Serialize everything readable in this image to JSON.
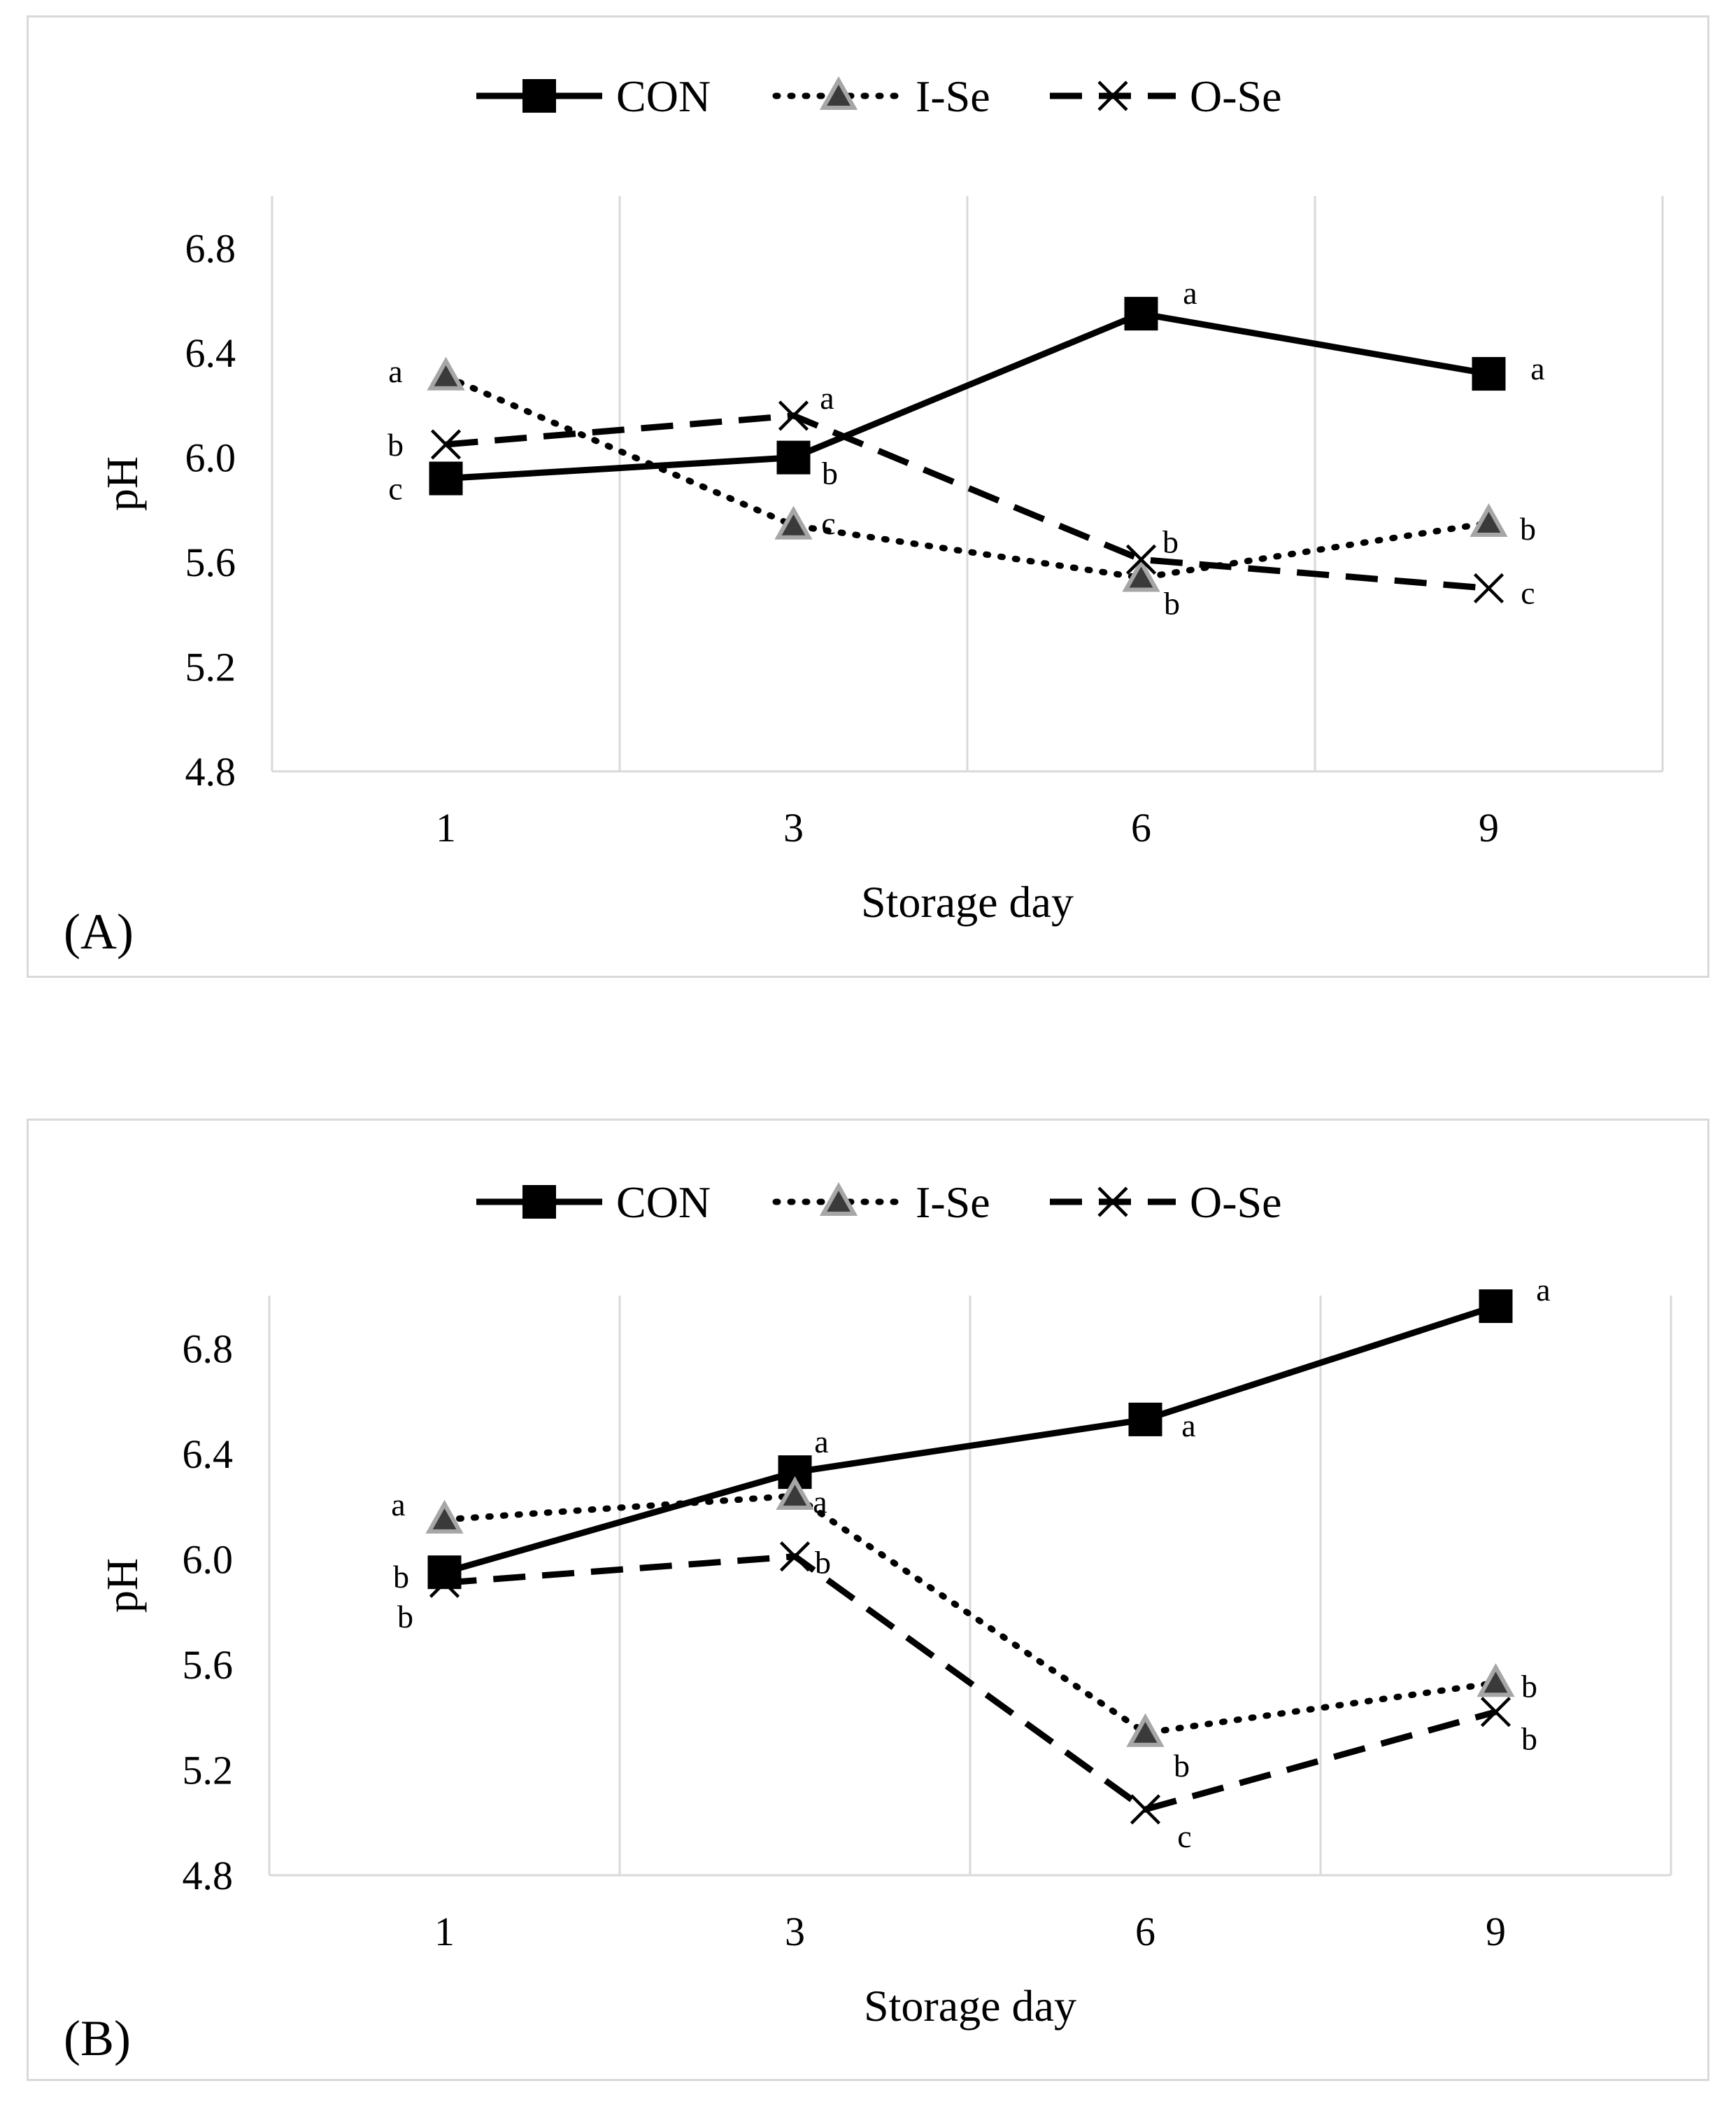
{
  "colors": {
    "line": "#000000",
    "grid": "#d9d9d9",
    "triangle_fill": "#3a3a3a",
    "triangle_edge": "#a6a6a6"
  },
  "chart_data": [
    {
      "type": "line",
      "panel_label": "(A)",
      "title": "",
      "xlabel": "Storage day",
      "ylabel": "pH",
      "categories": [
        "1",
        "3",
        "6",
        "9"
      ],
      "ylim": [
        4.8,
        7.0
      ],
      "yticks": [
        "4.8",
        "5.2",
        "5.6",
        "6.0",
        "6.4",
        "6.8"
      ],
      "grid": "vertical",
      "legend": "top-center",
      "series": [
        {
          "name": "CON",
          "style": "solid",
          "marker": "square",
          "values": [
            5.92,
            6.0,
            6.55,
            6.32
          ],
          "labels": [
            "c",
            "b",
            "a",
            "a"
          ]
        },
        {
          "name": "I-Se",
          "style": "dotted",
          "marker": "triangle",
          "values": [
            6.31,
            5.74,
            5.54,
            5.75
          ],
          "labels": [
            "a",
            "c",
            "b",
            "b"
          ]
        },
        {
          "name": "O-Se",
          "style": "dashed",
          "marker": "x",
          "values": [
            6.05,
            6.16,
            5.61,
            5.5
          ],
          "labels": [
            "b",
            "a",
            "b",
            "c"
          ]
        }
      ]
    },
    {
      "type": "line",
      "panel_label": "(B)",
      "title": "",
      "xlabel": "Storage day",
      "ylabel": "pH",
      "categories": [
        "1",
        "3",
        "6",
        "9"
      ],
      "ylim": [
        4.8,
        7.0
      ],
      "yticks": [
        "4.8",
        "5.2",
        "5.6",
        "6.0",
        "6.4",
        "6.8"
      ],
      "grid": "vertical",
      "legend": "top-center",
      "series": [
        {
          "name": "CON",
          "style": "solid",
          "marker": "square",
          "values": [
            5.95,
            6.33,
            6.53,
            6.96
          ],
          "labels": [
            "b",
            "a",
            "a",
            "a"
          ]
        },
        {
          "name": "I-Se",
          "style": "dotted",
          "marker": "triangle",
          "values": [
            6.15,
            6.24,
            5.34,
            5.53
          ],
          "labels": [
            "a",
            "a",
            "b",
            "b"
          ]
        },
        {
          "name": "O-Se",
          "style": "dashed",
          "marker": "x",
          "values": [
            5.91,
            6.01,
            5.05,
            5.42
          ],
          "labels": [
            "b",
            "b",
            "c",
            "b"
          ]
        }
      ]
    }
  ]
}
